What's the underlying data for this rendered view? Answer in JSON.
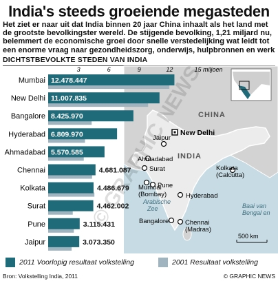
{
  "title": "India's steeds groeiende megasteden",
  "intro": [
    "Het ziet er naar uit dat India binnen 20 jaar China inhaalt als het land  met",
    "de grootste bevolkingster wereld. De stijgende bevolking, 1,21 miljard nu,",
    "belemmert de economische groei door snelle verstedelijking wat leidt tot",
    "een enorme vraag naar gezondheidszorg, onderwijs, hulpbronnen en werk"
  ],
  "chart_data": {
    "type": "bar",
    "title": "DICHTSTBEVOLKTE STEDEN VAN INDIA",
    "xlim": [
      0,
      15
    ],
    "x_ticks": [
      "3",
      "6",
      "9",
      "12",
      "15 miljoen"
    ],
    "categories": [
      "Mumbai",
      "New Delhi",
      "Bangalore",
      "Hyderabad",
      "Ahmadabad",
      "Chennai",
      "Kolkata",
      "Surat",
      "Pune",
      "Jaipur"
    ],
    "series": [
      {
        "name": "2011 Voorlopig resultaat volkstelling",
        "values": [
          12.478447,
          11.007835,
          8.42597,
          6.80997,
          5.570585,
          4.681087,
          4.486679,
          4.462002,
          3.115431,
          3.07335
        ],
        "labels": [
          "12.478.447",
          "11.007.835",
          "8.425.970",
          "6.809.970",
          "5.570.585",
          "4.681.087",
          "4.486.679",
          "4.462.002",
          "3.115.431",
          "3.073.350"
        ],
        "color": "#1f6b7a"
      },
      {
        "name": "2001 Resultaat volkstelling",
        "values": [
          11.98,
          9.88,
          4.3,
          3.64,
          3.52,
          4.34,
          4.57,
          2.43,
          2.54,
          2.32
        ],
        "color": "#9fb4be"
      }
    ]
  },
  "map": {
    "country_labels": {
      "china": "CHINA",
      "india": "INDIA"
    },
    "sea_labels": {
      "arabian_sea": [
        "Arabische",
        "Zee"
      ],
      "bay_of_bengal": [
        "Baai van",
        "Bengal en"
      ]
    },
    "cities": {
      "new_delhi": "New Delhi",
      "jaipur": "Jaipur",
      "ahmadabad": "Ahmadabad",
      "surat": "Surat",
      "mumbai": [
        "Mumbai",
        "(Bombay)"
      ],
      "pune": "Pune",
      "kolkata": [
        "Kolkata",
        "(Calcutta)"
      ],
      "hyderabad": "Hyderabad",
      "bangalore": "Bangalore",
      "chennai": [
        "Chennai",
        "(Madras)"
      ]
    },
    "scale": "500 km"
  },
  "watermark": "© GRAPHIC NEWS",
  "source": "Bron: Volkstelling India, 2011",
  "credit": "© GRAPHIC NEWS",
  "colors": {
    "bar2011": "#1f6b7a",
    "bar2001": "#9fb4be",
    "land": "#d4d4d4",
    "india": "#e8e8e8",
    "sea": "#c6dbe3"
  }
}
